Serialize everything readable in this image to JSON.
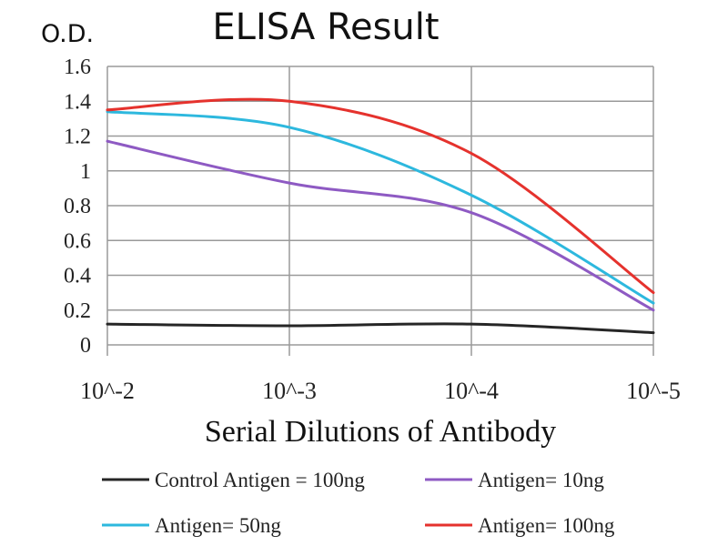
{
  "chart_data": {
    "type": "line",
    "title": "ELISA Result",
    "ylabel": "O.D.",
    "xlabel": "Serial Dilutions of Antibody",
    "categories": [
      "10^-2",
      "10^-3",
      "10^-4",
      "10^-5"
    ],
    "ylim": [
      0,
      1.6
    ],
    "yticks": [
      "0",
      "0.2",
      "0.4",
      "0.6",
      "0.8",
      "1",
      "1.2",
      "1.4",
      "1.6"
    ],
    "grid": true,
    "legend_position": "bottom",
    "series": [
      {
        "name": "Control Antigen = 100ng",
        "color": "#262626",
        "values": [
          0.12,
          0.11,
          0.12,
          0.07
        ]
      },
      {
        "name": "Antigen= 10ng",
        "color": "#8e5ac3",
        "values": [
          1.17,
          0.93,
          0.76,
          0.2
        ]
      },
      {
        "name": "Antigen= 50ng",
        "color": "#2db8de",
        "values": [
          1.34,
          1.25,
          0.86,
          0.24
        ]
      },
      {
        "name": "Antigen= 100ng",
        "color": "#e5322d",
        "values": [
          1.35,
          1.4,
          1.1,
          0.3
        ]
      }
    ]
  }
}
